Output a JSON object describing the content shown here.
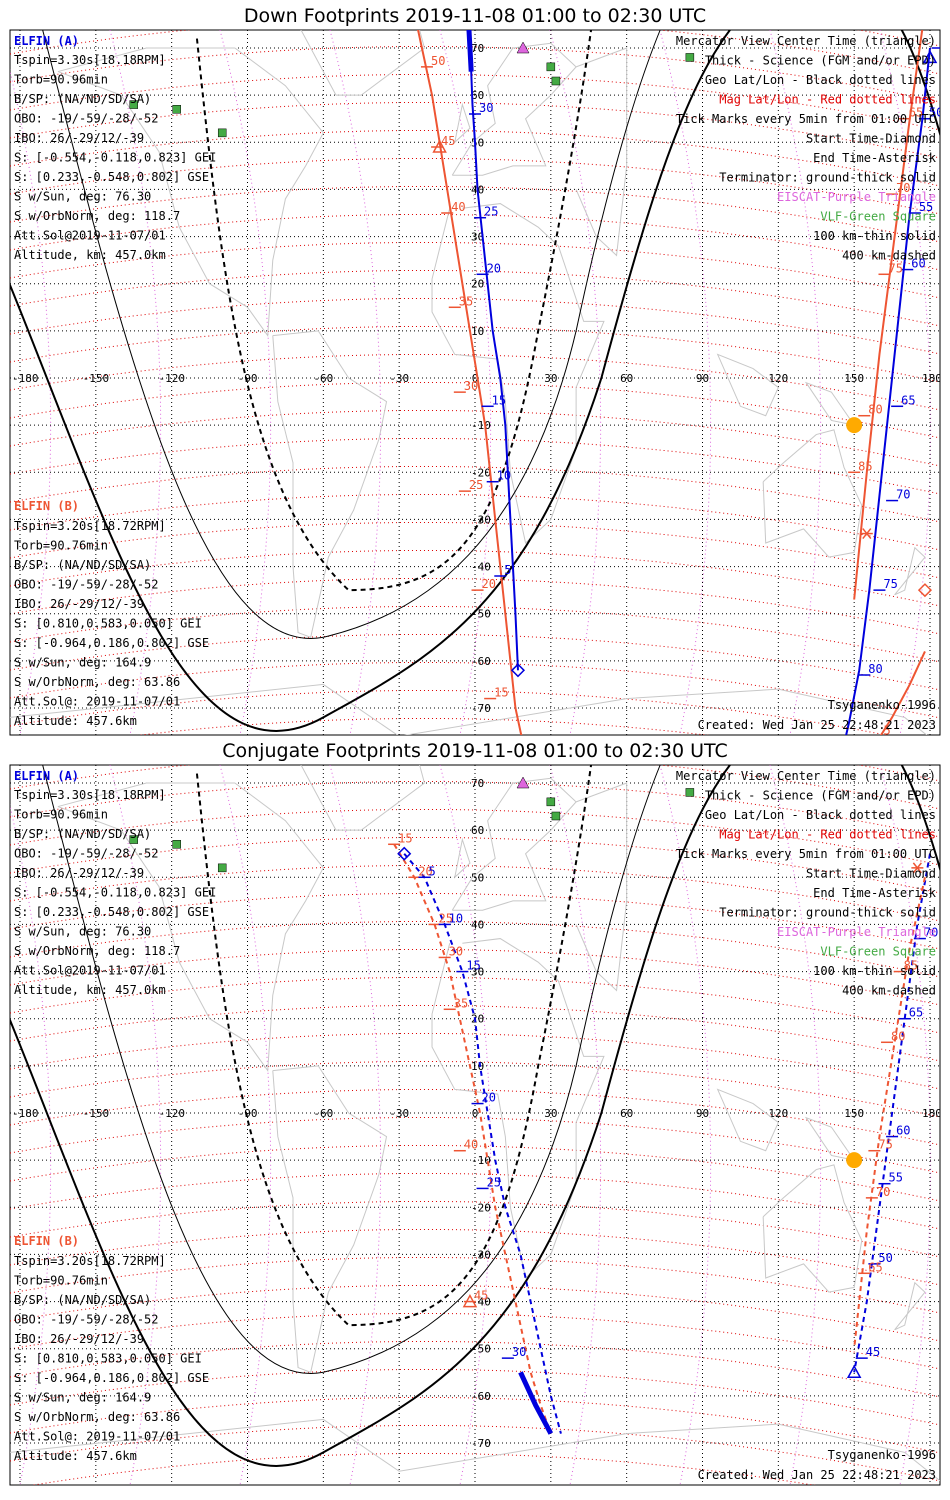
{
  "panels": [
    {
      "title": "Down Footprints 2019-11-08 01:00 to 02:30 UTC",
      "elfin_a": {
        "header": "ELFIN (A)",
        "lines": [
          "Tspin=3.30s[18.18RPM]",
          "Torb=90.96min",
          "B/SP: (NA/ND/SD/SA)",
          "OBO: -19/-59/-28/-52",
          "IBO: 26/-29/12/-39",
          "S: [-0.554,-0.118,0.823] GEI",
          "S: [0.233,-0.548,0.802] GSE",
          "S w/Sun, deg: 76.30",
          "S w/OrbNorm, deg: 118.7",
          "Att.Sol@2019-11-07/01",
          "Altitude, km: 457.0km"
        ]
      },
      "elfin_b": {
        "header": "ELFIN (B)",
        "lines": [
          "Tspin=3.20s[18.72RPM]",
          "Torb=90.76min",
          "B/SP: (NA/ND/SD/SA)",
          "OBO: -19/-59/-28/-52",
          "IBO: 26/-29/12/-39",
          "S: [0.810,0.583,0.050] GEI",
          "S: [-0.964,0.186,0.802] GSE",
          "S w/Sun, deg: 164.9",
          "S w/OrbNorm, deg: 63.86",
          "Att.Sol@: 2019-11-07/01",
          "Altitude: 457.6km"
        ]
      },
      "model": "Tsyganenko-1996",
      "created": "Created: Wed Jan 25 22:48:21 2023"
    },
    {
      "title": "Conjugate Footprints 2019-11-08 01:00 to 02:30 UTC",
      "elfin_a": {
        "header": "ELFIN (A)",
        "lines": [
          "Tspin=3.30s[18.18RPM]",
          "Torb=90.96min",
          "B/SP: (NA/ND/SD/SA)",
          "OBO: -19/-59/-28/-52",
          "IBO: 26/-29/12/-39",
          "S: [-0.554,-0.118,0.823] GEI",
          "S: [0.233,-0.548,0.802] GSE",
          "S w/Sun, deg: 76.30",
          "S w/OrbNorm, deg: 118.7",
          "Att.Sol@2019-11-07/01",
          "Altitude, km: 457.0km"
        ]
      },
      "elfin_b": {
        "header": "ELFIN (B)",
        "lines": [
          "Tspin=3.20s[18.72RPM]",
          "Torb=90.76min",
          "B/SP: (NA/ND/SD/SA)",
          "OBO: -19/-59/-28/-52",
          "IBO: 26/-29/12/-39",
          "S: [0.810,0.583,0.050] GEI",
          "S: [-0.964,0.186,0.802] GSE",
          "S w/Sun, deg: 164.9",
          "S w/OrbNorm, deg: 63.86",
          "Att.Sol@: 2019-11-07/01",
          "Altitude: 457.6km"
        ]
      },
      "model": "Tsyganenko-1996",
      "created": "Created: Wed Jan 25 22:48:21 2023"
    }
  ],
  "legend": [
    {
      "text": "Mercator View Center Time (triangle)",
      "color": "#000000"
    },
    {
      "text": "Thick - Science (FGM and/or EPD)",
      "color": "#000000"
    },
    {
      "text": "Geo Lat/Lon - Black dotted lines",
      "color": "#000000"
    },
    {
      "text": "Mag Lat/Lon - Red dotted lines",
      "color": "#e00000"
    },
    {
      "text": "Tick Marks every 5min from 01:00 UTC",
      "color": "#000000"
    },
    {
      "text": "Start Time-Diamond",
      "color": "#000000"
    },
    {
      "text": "End Time-Asterisk",
      "color": "#000000"
    },
    {
      "text": "Terminator: ground-thick solid",
      "color": "#000000"
    },
    {
      "text": "EISCAT-Purple Triangle",
      "color": "#dd66dd"
    },
    {
      "text": "VLF-Green Square",
      "color": "#44aa44"
    },
    {
      "text": "100 km-thin solid",
      "color": "#000000"
    },
    {
      "text": "400 km-dashed",
      "color": "#000000"
    }
  ],
  "colors": {
    "elfin_a": "#0000dd",
    "elfin_b": "#ee5533",
    "mag_grid": "#dd0000",
    "eiscat": "#dd66dd",
    "vlf": "#44aa44",
    "sun": "#ffaa00"
  },
  "lon_ticks": [
    "-180",
    "-150",
    "-120",
    "-90",
    "-60",
    "-30",
    "0",
    "30",
    "60",
    "90",
    "120",
    "150",
    "180"
  ],
  "lat_ticks": [
    "-70",
    "-60",
    "-50",
    "-40",
    "-30",
    "-20",
    "-10",
    "0",
    "10",
    "20",
    "30",
    "40",
    "50",
    "60",
    "70"
  ],
  "down": {
    "a_track": {
      "lon": [
        -3,
        -2.5,
        -2,
        -1.5,
        -1,
        0,
        1,
        3,
        5,
        7,
        10,
        12,
        14,
        16,
        17
      ],
      "lat": [
        79,
        75,
        70,
        65,
        58,
        50,
        40,
        30,
        20,
        10,
        0,
        -10,
        -30,
        -50,
        -62
      ]
    },
    "a_ticks": [
      {
        "label": "35",
        "lon": -2,
        "lat": 76
      },
      {
        "label": "30",
        "lon": 0,
        "lat": 56
      },
      {
        "label": "25",
        "lon": 2,
        "lat": 34
      },
      {
        "label": "20",
        "lon": 3,
        "lat": 22
      },
      {
        "label": "15",
        "lon": 5,
        "lat": -6
      },
      {
        "label": "10",
        "lon": 7,
        "lat": -22
      },
      {
        "label": "5",
        "lon": 10,
        "lat": -42
      }
    ],
    "b_track": {
      "lon": [
        -25,
        -21,
        -17,
        -14,
        -11,
        -8,
        -5,
        -2,
        1,
        4,
        8,
        12,
        16,
        20
      ],
      "lat": [
        80,
        70,
        60,
        50,
        40,
        30,
        20,
        10,
        0,
        -10,
        -30,
        -50,
        -70,
        -80
      ]
    },
    "b_ticks": [
      {
        "label": "50",
        "lon": -19,
        "lat": 66
      },
      {
        "label": "45",
        "lon": -15,
        "lat": 49
      },
      {
        "label": "40",
        "lon": -11,
        "lat": 35
      },
      {
        "label": "35",
        "lon": -8,
        "lat": 15
      },
      {
        "label": "30",
        "lon": -6,
        "lat": -3
      },
      {
        "label": "25",
        "lon": -4,
        "lat": -24
      },
      {
        "label": "20",
        "lon": 1,
        "lat": -45
      },
      {
        "label": "15",
        "lon": 6,
        "lat": -68
      }
    ],
    "a2_track": {
      "lon": [
        180,
        177,
        172,
        168,
        164,
        160,
        156,
        152,
        148,
        145
      ],
      "lat": [
        70,
        55,
        35,
        15,
        -5,
        -25,
        -45,
        -62,
        -73,
        -80
      ]
    },
    "a2_ticks": [
      {
        "label": "45",
        "lon": 183,
        "lat": 70
      },
      {
        "label": "50",
        "lon": 178,
        "lat": 55
      },
      {
        "label": "55",
        "lon": 174,
        "lat": 35
      },
      {
        "label": "60",
        "lon": 171,
        "lat": 23
      },
      {
        "label": "65",
        "lon": 167,
        "lat": -6
      },
      {
        "label": "70",
        "lon": 165,
        "lat": -26
      },
      {
        "label": "75",
        "lon": 160,
        "lat": -45
      },
      {
        "label": "80",
        "lon": 154,
        "lat": -63
      }
    ],
    "b2_track": {
      "lon": [
        178,
        172,
        166,
        160,
        155,
        150
      ],
      "lat": [
        78,
        55,
        30,
        5,
        -20,
        -47
      ]
    },
    "b2_ticks": [
      {
        "label": "60",
        "lon": 180,
        "lat": 78
      },
      {
        "label": "65",
        "lon": 170,
        "lat": 55
      },
      {
        "label": "70",
        "lon": 165,
        "lat": 39
      },
      {
        "label": "75",
        "lon": 162,
        "lat": 22
      },
      {
        "label": "80",
        "lon": 154,
        "lat": -8
      },
      {
        "label": "85",
        "lon": 150,
        "lat": -20
      }
    ],
    "b3_track": {
      "lon": [
        178,
        172,
        165,
        158
      ],
      "lat": [
        -58,
        -65,
        -72,
        -78
      ]
    },
    "b3_ticks": [
      {
        "label": "5",
        "lon": 160,
        "lat": -76
      }
    ]
  },
  "conj": {
    "a_track": {
      "lon": [
        -28,
        -20,
        -12,
        -5,
        0,
        2,
        5,
        8,
        12,
        18,
        24,
        30,
        34
      ],
      "lat": [
        55,
        50,
        40,
        30,
        20,
        10,
        0,
        -10,
        -20,
        -30,
        -45,
        -60,
        -68
      ]
    },
    "a_ticks": [
      {
        "label": "5",
        "lon": -20,
        "lat": 50
      },
      {
        "label": "10",
        "lon": -12,
        "lat": 40
      },
      {
        "label": "15",
        "lon": -5,
        "lat": 30
      },
      {
        "label": "20",
        "lon": 1,
        "lat": 2
      },
      {
        "label": "25",
        "lon": 3,
        "lat": -16
      },
      {
        "label": "30",
        "lon": 13,
        "lat": -52
      }
    ],
    "b_track": {
      "lon": [
        -32,
        -24,
        -16,
        -10,
        -6,
        -2,
        2,
        5,
        8,
        12,
        18,
        22,
        26,
        30
      ],
      "lat": [
        57,
        50,
        40,
        30,
        20,
        10,
        0,
        -10,
        -20,
        -30,
        -45,
        -55,
        -62,
        -68
      ]
    },
    "b_ticks": [
      {
        "label": "15",
        "lon": -32,
        "lat": 57
      },
      {
        "label": "20",
        "lon": -24,
        "lat": 50
      },
      {
        "label": "25",
        "lon": -16,
        "lat": 40
      },
      {
        "label": "30",
        "lon": -12,
        "lat": 33
      },
      {
        "label": "35",
        "lon": -10,
        "lat": 22
      },
      {
        "label": "40",
        "lon": -6,
        "lat": -8
      },
      {
        "label": "45",
        "lon": -2,
        "lat": -40
      }
    ],
    "a2_track": {
      "lon": [
        180,
        175,
        170,
        165,
        160,
        155,
        150
      ],
      "lat": [
        55,
        40,
        20,
        0,
        -20,
        -40,
        -55
      ]
    },
    "a2_ticks": [
      {
        "label": "70",
        "lon": 176,
        "lat": 37
      },
      {
        "label": "65",
        "lon": 170,
        "lat": 20
      },
      {
        "label": "60",
        "lon": 165,
        "lat": -5
      },
      {
        "label": "55",
        "lon": 162,
        "lat": -15
      },
      {
        "label": "50",
        "lon": 158,
        "lat": -32
      },
      {
        "label": "45",
        "lon": 153,
        "lat": -52
      }
    ],
    "b2_track": {
      "lon": [
        178,
        172,
        166,
        160,
        155,
        150
      ],
      "lat": [
        50,
        35,
        15,
        -5,
        -25,
        -50
      ]
    },
    "b2_ticks": [
      {
        "label": "85",
        "lon": 168,
        "lat": 30
      },
      {
        "label": "80",
        "lon": 163,
        "lat": 15
      },
      {
        "label": "75",
        "lon": 158,
        "lat": -8
      },
      {
        "label": "70",
        "lon": 157,
        "lat": -18
      },
      {
        "label": "65",
        "lon": 154,
        "lat": -34
      }
    ]
  }
}
